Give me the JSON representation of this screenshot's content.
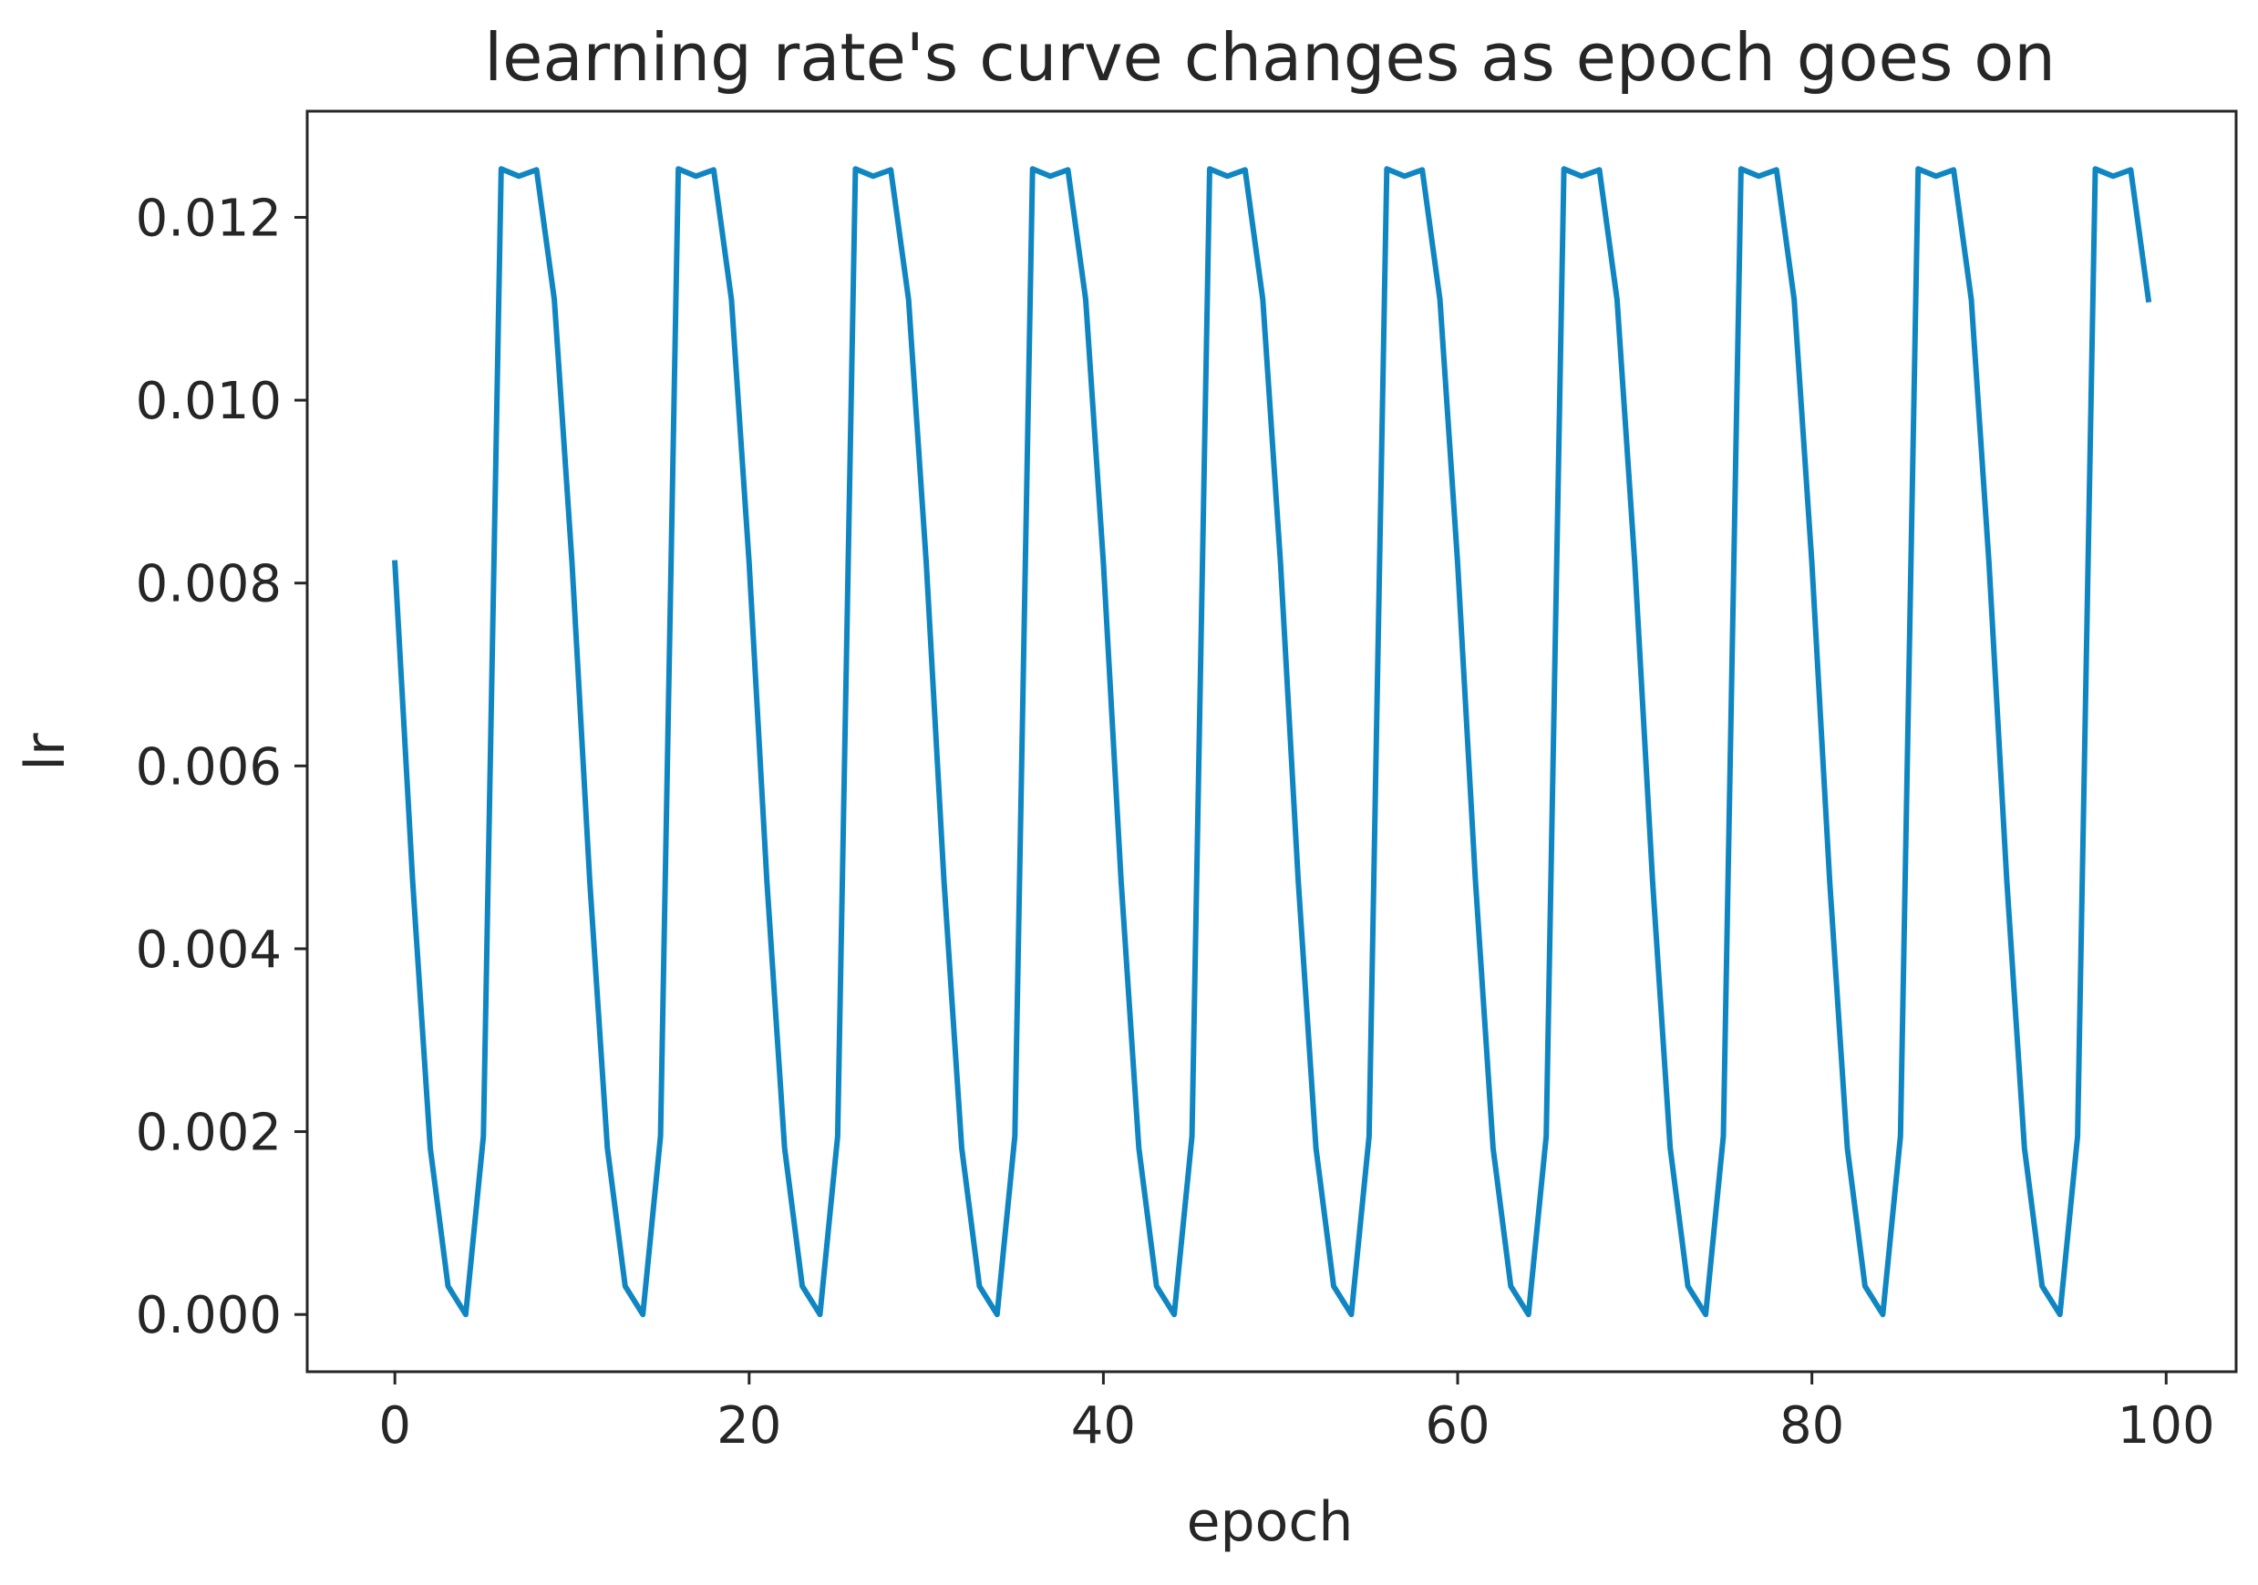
{
  "chart_data": {
    "type": "line",
    "title": "learning rate's curve changes as epoch goes on",
    "xlabel": "epoch",
    "ylabel": "lr",
    "xlim": [
      -4.95,
      103.95
    ],
    "ylim": [
      -0.000626,
      0.013161
    ],
    "xticks": [
      0,
      20,
      40,
      60,
      80,
      100
    ],
    "xtick_labels": [
      "0",
      "20",
      "40",
      "60",
      "80",
      "100"
    ],
    "yticks": [
      0.0,
      0.002,
      0.004,
      0.006,
      0.008,
      0.01,
      0.012
    ],
    "ytick_labels": [
      "0.000",
      "0.002",
      "0.004",
      "0.006",
      "0.008",
      "0.010",
      "0.012"
    ],
    "grid": false,
    "legend": "none",
    "series_color": "#0f86c2",
    "x": [
      0,
      1,
      2,
      3,
      4,
      5,
      6,
      7,
      8,
      9,
      10,
      11,
      12,
      13,
      14,
      15,
      16,
      17,
      18,
      19,
      20,
      21,
      22,
      23,
      24,
      25,
      26,
      27,
      28,
      29,
      30,
      31,
      32,
      33,
      34,
      35,
      36,
      37,
      38,
      39,
      40,
      41,
      42,
      43,
      44,
      45,
      46,
      47,
      48,
      49,
      50,
      51,
      52,
      53,
      54,
      55,
      56,
      57,
      58,
      59,
      60,
      61,
      62,
      63,
      64,
      65,
      66,
      67,
      68,
      69,
      70,
      71,
      72,
      73,
      74,
      75,
      76,
      77,
      78,
      79,
      80,
      81,
      82,
      83,
      84,
      85,
      86,
      87,
      88,
      89,
      90,
      91,
      92,
      93,
      94,
      95,
      96,
      97,
      98,
      99
    ],
    "series": [
      {
        "values": [
          0.00822,
          0.00475,
          0.00182,
          0.00031,
          0.0,
          0.00195,
          0.01253,
          0.01245,
          0.01252,
          0.0111,
          0.00822,
          0.00475,
          0.00182,
          0.00031,
          0.0,
          0.00195,
          0.01253,
          0.01245,
          0.01252,
          0.0111,
          0.00822,
          0.00475,
          0.00182,
          0.00031,
          0.0,
          0.00195,
          0.01253,
          0.01245,
          0.01252,
          0.0111,
          0.00822,
          0.00475,
          0.00182,
          0.00031,
          0.0,
          0.00195,
          0.01253,
          0.01245,
          0.01252,
          0.0111,
          0.00822,
          0.00475,
          0.00182,
          0.00031,
          0.0,
          0.00195,
          0.01253,
          0.01245,
          0.01252,
          0.0111,
          0.00822,
          0.00475,
          0.00182,
          0.00031,
          0.0,
          0.00195,
          0.01253,
          0.01245,
          0.01252,
          0.0111,
          0.00822,
          0.00475,
          0.00182,
          0.00031,
          0.0,
          0.00195,
          0.01253,
          0.01245,
          0.01252,
          0.0111,
          0.00822,
          0.00475,
          0.00182,
          0.00031,
          0.0,
          0.00195,
          0.01253,
          0.01245,
          0.01252,
          0.0111,
          0.00822,
          0.00475,
          0.00182,
          0.00031,
          0.0,
          0.00195,
          0.01253,
          0.01245,
          0.01252,
          0.0111,
          0.00822,
          0.00475,
          0.00182,
          0.00031,
          0.0,
          0.00195,
          0.01253,
          0.01245,
          0.01252,
          0.0111
        ]
      }
    ]
  }
}
